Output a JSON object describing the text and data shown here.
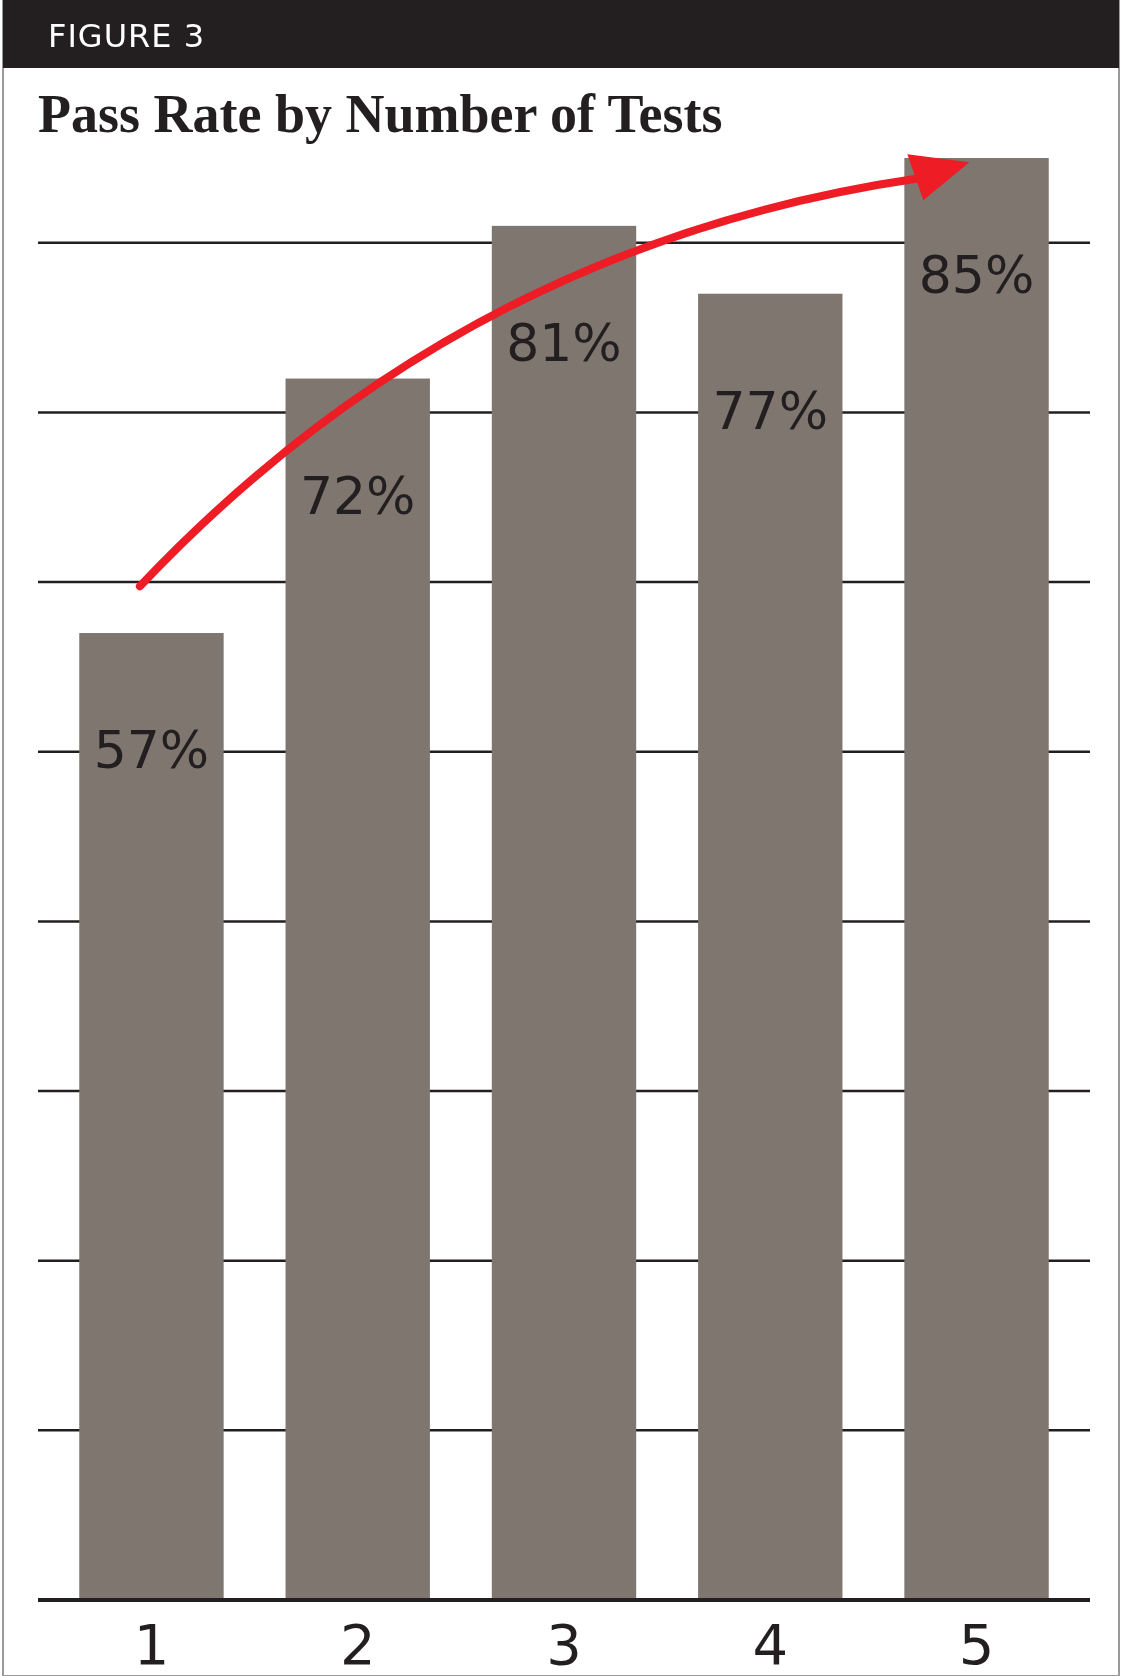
{
  "chart_data": {
    "type": "bar",
    "title": "Pass Rate by Number of Tests",
    "annotations": [
      "FIGURE 3"
    ],
    "categories": [
      "1",
      "2",
      "3",
      "4",
      "5"
    ],
    "values": [
      57,
      72,
      81,
      77,
      85
    ],
    "value_labels": [
      "57%",
      "72%",
      "81%",
      "77%",
      "85%"
    ],
    "color": "#7f766f",
    "yticks": [
      {
        "value": 10,
        "label": null
      },
      {
        "value": 20,
        "label": null
      },
      {
        "value": 30,
        "label": null
      },
      {
        "value": 40,
        "label": null
      },
      {
        "value": 50,
        "label": null
      },
      {
        "value": 60,
        "label": null
      },
      {
        "value": 70,
        "label": null
      },
      {
        "value": 80,
        "label": null
      }
    ],
    "grid": "y",
    "tick_labels": "x"
  }
}
